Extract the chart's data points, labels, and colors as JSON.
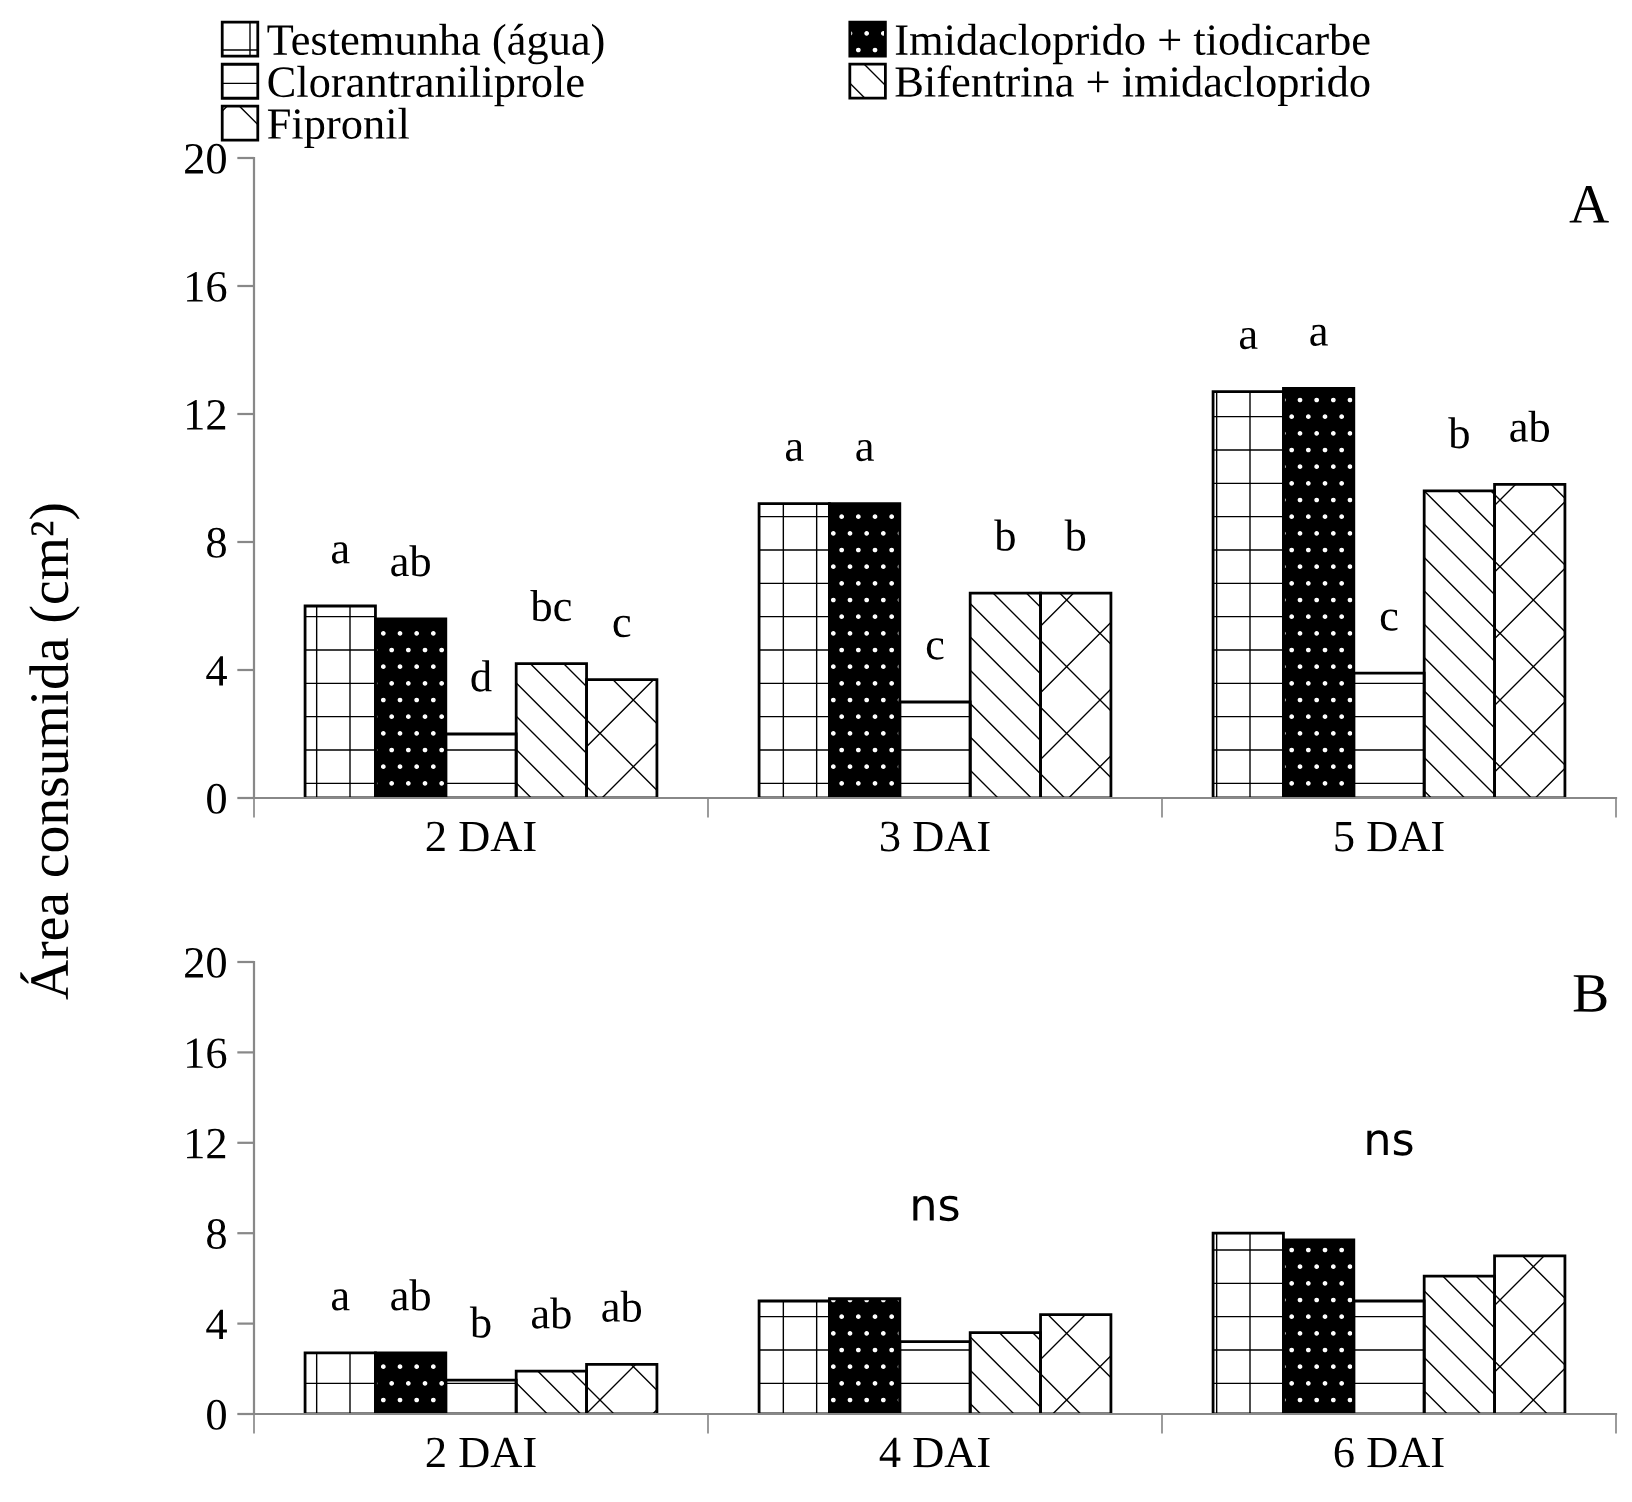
{
  "chart_data": [
    {
      "type": "bar",
      "ylabel": "Área consumida (cm²)",
      "categories": [
        "2 DAI",
        "3 DAI",
        "5 DAI"
      ],
      "ylim": [
        0,
        20
      ],
      "yticks": [
        0,
        4,
        8,
        12,
        16,
        20
      ],
      "grid": false,
      "legend": "top",
      "annotations": [
        "A"
      ],
      "series": [
        {
          "name": "Testemunha (água)",
          "color": "#ffffff",
          "values": [
            6.0,
            9.2,
            12.7
          ],
          "value_labels": [
            "a",
            "a",
            "a"
          ]
        },
        {
          "name": "Imidacloprido + tiodicarbe",
          "color": "#000000",
          "values": [
            5.6,
            9.2,
            12.8
          ],
          "value_labels": [
            "ab",
            "a",
            "a"
          ]
        },
        {
          "name": "Clorantraniliprole",
          "color": "#ffffff",
          "values": [
            2.0,
            3.0,
            3.9
          ],
          "value_labels": [
            "d",
            "c",
            "c"
          ]
        },
        {
          "name": "Bifentrina + imidacloprido",
          "color": "#ffffff",
          "values": [
            4.2,
            6.4,
            9.6
          ],
          "value_labels": [
            "bc",
            "b",
            "b"
          ]
        },
        {
          "name": "Fipronil",
          "color": "#ffffff",
          "values": [
            3.7,
            6.4,
            9.8
          ],
          "value_labels": [
            "c",
            "b",
            "ab"
          ]
        }
      ]
    },
    {
      "type": "bar",
      "categories": [
        "2 DAI",
        "4 DAI",
        "6 DAI"
      ],
      "ylim": [
        0,
        20
      ],
      "yticks": [
        0,
        4,
        8,
        12,
        16,
        20
      ],
      "grid": false,
      "annotations": [
        "B",
        "ns",
        "ns"
      ],
      "series": [
        {
          "color": "#ffffff",
          "values": [
            2.7,
            5.0,
            8.0
          ],
          "value_labels": [
            "a",
            null,
            null
          ]
        },
        {
          "color": "#000000",
          "values": [
            2.7,
            5.1,
            7.7
          ],
          "value_labels": [
            "ab",
            null,
            null
          ]
        },
        {
          "color": "#ffffff",
          "values": [
            1.5,
            3.2,
            5.0
          ],
          "value_labels": [
            "b",
            null,
            null
          ]
        },
        {
          "color": "#ffffff",
          "values": [
            1.9,
            3.6,
            6.1
          ],
          "value_labels": [
            "ab",
            null,
            null
          ]
        },
        {
          "color": "#ffffff",
          "values": [
            2.2,
            4.4,
            7.0
          ],
          "value_labels": [
            "ab",
            null,
            null
          ]
        }
      ]
    }
  ]
}
